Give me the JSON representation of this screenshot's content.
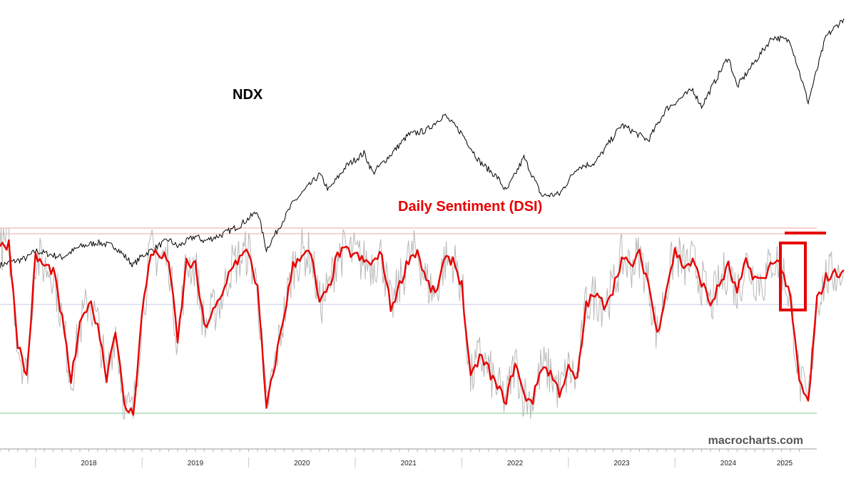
{
  "chart_data": {
    "type": "line",
    "title": "",
    "xlabel": "",
    "ylabel": "",
    "x_range": [
      "2017-09",
      "2025-03"
    ],
    "x_ticks": [
      "2018",
      "2019",
      "2020",
      "2021",
      "2022",
      "2023",
      "2024",
      "2025"
    ],
    "watermark": "macrocharts.com",
    "grid": false,
    "colors": {
      "ndx": "#000000",
      "dsi": "#e80000",
      "dsi_daily": "#b8b8b8",
      "upper_band": "#f2a6a6",
      "mid_line": "#c9cde6",
      "lower_band": "#8fcf9a",
      "highlight_box": "#e60000"
    },
    "series": [
      {
        "name": "NDX",
        "label_color": "#000000",
        "x": [
          "2017-09",
          "2017-12",
          "2018-01",
          "2018-03",
          "2018-04",
          "2018-06",
          "2018-08",
          "2018-10",
          "2018-12",
          "2019-01",
          "2019-04",
          "2019-05",
          "2019-07",
          "2019-08",
          "2019-10",
          "2019-12",
          "2020-02",
          "2020-03",
          "2020-06",
          "2020-09",
          "2020-10",
          "2020-12",
          "2021-02",
          "2021-03",
          "2021-05",
          "2021-07",
          "2021-09",
          "2021-11",
          "2022-01",
          "2022-03",
          "2022-05",
          "2022-06",
          "2022-08",
          "2022-10",
          "2022-12",
          "2023-02",
          "2023-04",
          "2023-07",
          "2023-10",
          "2023-12",
          "2024-03",
          "2024-04",
          "2024-07",
          "2024-08",
          "2024-12",
          "2025-02",
          "2025-04",
          "2025-06",
          "2025-08"
        ],
        "values": [
          5900,
          6400,
          6900,
          6600,
          6450,
          7200,
          7500,
          7200,
          5900,
          6550,
          7700,
          7200,
          7950,
          7600,
          8050,
          8700,
          9700,
          7000,
          10300,
          12300,
          11200,
          12900,
          13800,
          12400,
          13700,
          15100,
          15400,
          16500,
          15200,
          13200,
          12100,
          11100,
          13500,
          10800,
          10900,
          12800,
          13100,
          15800,
          14700,
          16900,
          18300,
          17100,
          20600,
          18500,
          22000,
          21700,
          17400,
          22000,
          23300
        ],
        "min": 5500,
        "max": 23500
      },
      {
        "name": "Daily Sentiment (DSI)",
        "label_color": "#e80000",
        "x": [
          "2017-09",
          "2017-10",
          "2017-11",
          "2017-12",
          "2018-01",
          "2018-02",
          "2018-03",
          "2018-04",
          "2018-05",
          "2018-06",
          "2018-07",
          "2018-08",
          "2018-09",
          "2018-10",
          "2018-11",
          "2018-12",
          "2019-01",
          "2019-02",
          "2019-03",
          "2019-04",
          "2019-05",
          "2019-06",
          "2019-07",
          "2019-08",
          "2019-09",
          "2019-10",
          "2019-11",
          "2019-12",
          "2020-01",
          "2020-02",
          "2020-03",
          "2020-04",
          "2020-05",
          "2020-06",
          "2020-07",
          "2020-08",
          "2020-09",
          "2020-10",
          "2020-11",
          "2020-12",
          "2021-01",
          "2021-02",
          "2021-03",
          "2021-04",
          "2021-05",
          "2021-06",
          "2021-07",
          "2021-08",
          "2021-09",
          "2021-10",
          "2021-11",
          "2021-12",
          "2022-01",
          "2022-02",
          "2022-03",
          "2022-04",
          "2022-05",
          "2022-06",
          "2022-07",
          "2022-08",
          "2022-09",
          "2022-10",
          "2022-11",
          "2022-12",
          "2023-01",
          "2023-02",
          "2023-03",
          "2023-04",
          "2023-05",
          "2023-06",
          "2023-07",
          "2023-08",
          "2023-09",
          "2023-10",
          "2023-11",
          "2023-12",
          "2024-01",
          "2024-02",
          "2024-03",
          "2024-04",
          "2024-05",
          "2024-06",
          "2024-07",
          "2024-08",
          "2024-09",
          "2024-10",
          "2024-11",
          "2024-12",
          "2025-01",
          "2025-02",
          "2025-03",
          "2025-04",
          "2025-05",
          "2025-06",
          "2025-07",
          "2025-08"
        ],
        "values": [
          90,
          92,
          40,
          22,
          85,
          80,
          78,
          52,
          20,
          48,
          62,
          50,
          22,
          48,
          6,
          3,
          55,
          88,
          85,
          84,
          40,
          82,
          80,
          48,
          56,
          64,
          80,
          84,
          88,
          68,
          5,
          30,
          55,
          80,
          87,
          86,
          60,
          68,
          86,
          88,
          86,
          82,
          82,
          86,
          58,
          70,
          84,
          88,
          72,
          65,
          82,
          84,
          70,
          20,
          33,
          26,
          16,
          10,
          30,
          12,
          10,
          28,
          24,
          14,
          26,
          20,
          60,
          65,
          60,
          68,
          84,
          80,
          86,
          72,
          44,
          68,
          88,
          80,
          82,
          72,
          60,
          70,
          80,
          66,
          82,
          74,
          72,
          84,
          80,
          62,
          20,
          8,
          62,
          74,
          76,
          78
        ],
        "min": 0,
        "max": 100
      }
    ],
    "reference_lines": [
      {
        "name": "upper-band",
        "y": 100
      },
      {
        "name": "upper-band-2",
        "y": 97
      },
      {
        "name": "mid-line",
        "y": 60
      },
      {
        "name": "lower-band",
        "y": 3
      }
    ]
  }
}
